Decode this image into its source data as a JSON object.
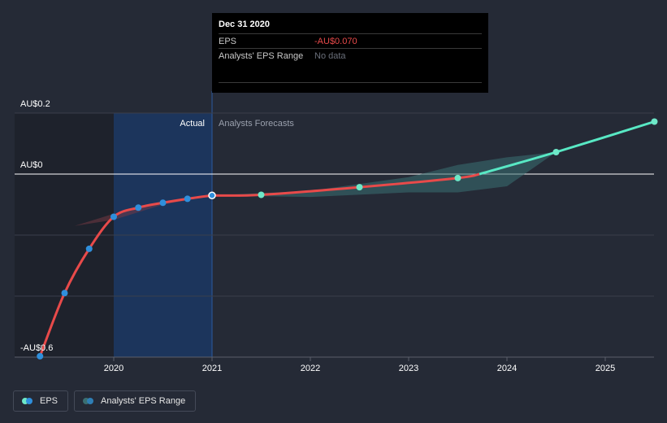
{
  "chart_data": {
    "type": "line",
    "y_ticks": [
      "AU$0.2",
      "AU$0",
      "-AU$0.6"
    ],
    "x_ticks": [
      "2020",
      "2021",
      "2022",
      "2023",
      "2024",
      "2025"
    ],
    "ylim": [
      -0.6,
      0.2
    ],
    "region_labels": {
      "actual": "Actual",
      "forecast": "Analysts Forecasts"
    },
    "series": [
      {
        "name": "EPS",
        "color": "#e84a4a",
        "points": [
          {
            "x": 2019.25,
            "y": -0.597
          },
          {
            "x": 2019.5,
            "y": -0.39
          },
          {
            "x": 2019.75,
            "y": -0.245
          },
          {
            "x": 2020.0,
            "y": -0.14
          },
          {
            "x": 2020.25,
            "y": -0.11
          },
          {
            "x": 2020.5,
            "y": -0.094
          },
          {
            "x": 2020.75,
            "y": -0.081
          },
          {
            "x": 2021.0,
            "y": -0.07
          }
        ]
      },
      {
        "name": "EPS forecast",
        "color": "#e84a4a",
        "points": [
          {
            "x": 2021.0,
            "y": -0.07
          },
          {
            "x": 2021.5,
            "y": -0.068
          },
          {
            "x": 2022.5,
            "y": -0.043
          },
          {
            "x": 2023.5,
            "y": -0.013
          },
          {
            "x": 2024.5,
            "y": 0.072
          },
          {
            "x": 2025.5,
            "y": 0.172
          }
        ],
        "crossover_color": "#58e8c4"
      }
    ],
    "range_band": {
      "x": [
        2021.0,
        2022.0,
        2023.0,
        2023.5,
        2024.0,
        2024.5
      ],
      "upper": [
        -0.07,
        -0.055,
        -0.01,
        0.03,
        0.055,
        0.072
      ],
      "lower": [
        -0.07,
        -0.075,
        -0.06,
        -0.06,
        -0.04,
        0.072
      ]
    },
    "history_band": {
      "x": [
        2019.6,
        2020.0,
        2020.5,
        2021.0
      ],
      "upper": [
        -0.17,
        -0.13,
        -0.09,
        -0.068
      ],
      "lower": [
        -0.17,
        -0.15,
        -0.1,
        -0.072
      ]
    },
    "colors": {
      "eps_line": "#e84a4a",
      "eps_forecast_positive": "#58e8c4",
      "actual_marker": "#2f8fdc",
      "forecast_marker": "#6ee8c8",
      "band_fill": "#3a6f72",
      "highlight_region": "#1a3a6a",
      "zero_line": "#ffffff",
      "grid": "#3a3f4b"
    },
    "grid": true,
    "legend_placement": "bottom-left"
  },
  "tooltip": {
    "date": "Dec 31 2020",
    "rows": [
      {
        "label": "EPS",
        "value": "-AU$0.070"
      },
      {
        "label": "Analysts' EPS Range",
        "value": "No data"
      }
    ]
  },
  "legend": {
    "items": [
      {
        "label": "EPS",
        "colors": [
          "#2f8fdc",
          "#6ee8c8"
        ]
      },
      {
        "label": "Analysts' EPS Range",
        "colors": [
          "#3a6f72",
          "#2f7fb5"
        ]
      }
    ]
  }
}
